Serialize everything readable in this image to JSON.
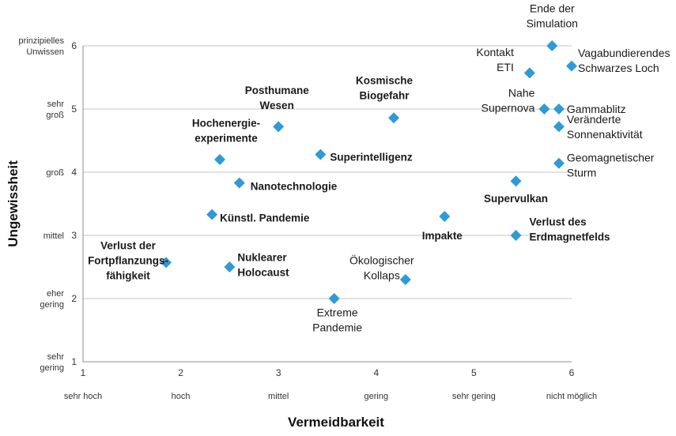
{
  "chart_data": {
    "type": "scatter",
    "xlabel": "Vermeidbarkeit",
    "ylabel": "Ungewissheit",
    "xlim": [
      1,
      6
    ],
    "ylim": [
      1,
      6
    ],
    "grid": true,
    "x_ticks": [
      1,
      2,
      3,
      4,
      5,
      6
    ],
    "y_ticks": [
      1,
      2,
      3,
      4,
      5,
      6
    ],
    "x_tick_words": [
      "sehr hoch",
      "hoch",
      "mittel",
      "gering",
      "sehr gering",
      "nicht möglich"
    ],
    "y_tick_words": [
      [
        "sehr",
        "gering"
      ],
      [
        "eher",
        "gering"
      ],
      [
        "mittel"
      ],
      [
        "groß"
      ],
      [
        "sehr",
        "groß"
      ],
      [
        "prinzipielles",
        "Unwissen"
      ]
    ],
    "points": [
      {
        "label": [
          "Ende der",
          "Simulation"
        ],
        "x": 5.8,
        "y": 6.0,
        "bold": false
      },
      {
        "label": [
          "Kontakt",
          "ETI"
        ],
        "x": 5.57,
        "y": 5.57,
        "bold": false
      },
      {
        "label": [
          "Vagabundierendes",
          "Schwarzes Loch"
        ],
        "x": 6.0,
        "y": 5.68,
        "bold": false
      },
      {
        "label": [
          "Kosmische",
          "Biogefahr"
        ],
        "x": 4.18,
        "y": 4.86,
        "bold": true
      },
      {
        "label": [
          "Posthumane",
          "Wesen"
        ],
        "x": 3.0,
        "y": 4.72,
        "bold": true
      },
      {
        "label": [
          "Nahe",
          "Supernova"
        ],
        "x": 5.72,
        "y": 5.0,
        "bold": false
      },
      {
        "label": [
          "Gammablitz"
        ],
        "x": 5.87,
        "y": 5.0,
        "bold": false
      },
      {
        "label": [
          "Veränderte",
          "Sonnenaktivität"
        ],
        "x": 5.87,
        "y": 4.72,
        "bold": false
      },
      {
        "label": [
          "Hochenergie-",
          "experimente"
        ],
        "x": 2.4,
        "y": 4.2,
        "bold": true
      },
      {
        "label": [
          "Superintelligenz"
        ],
        "x": 3.43,
        "y": 4.28,
        "bold": true
      },
      {
        "label": [
          "Geomagnetischer",
          "Sturm"
        ],
        "x": 5.87,
        "y": 4.14,
        "bold": false
      },
      {
        "label": [
          "Nanotechnologie"
        ],
        "x": 2.6,
        "y": 3.83,
        "bold": true
      },
      {
        "label": [
          "Supervulkan"
        ],
        "x": 5.43,
        "y": 3.86,
        "bold": true
      },
      {
        "label": [
          "Künstl. Pandemie"
        ],
        "x": 2.32,
        "y": 3.33,
        "bold": true
      },
      {
        "label": [
          "Impakte"
        ],
        "x": 4.7,
        "y": 3.3,
        "bold": true
      },
      {
        "label": [
          "Verlust des",
          "Erdmagnetfelds"
        ],
        "x": 5.43,
        "y": 3.0,
        "bold": true
      },
      {
        "label": [
          "Verlust der",
          "Fortpflanzungs-",
          "fähigkeit"
        ],
        "x": 1.85,
        "y": 2.57,
        "bold": true
      },
      {
        "label": [
          "Nuklearer",
          "Holocaust"
        ],
        "x": 2.5,
        "y": 2.5,
        "bold": true
      },
      {
        "label": [
          "Ökologischer",
          "Kollaps"
        ],
        "x": 4.3,
        "y": 2.3,
        "bold": false
      },
      {
        "label": [
          "Extreme",
          "Pandemie"
        ],
        "x": 3.57,
        "y": 2.0,
        "bold": false
      }
    ]
  }
}
